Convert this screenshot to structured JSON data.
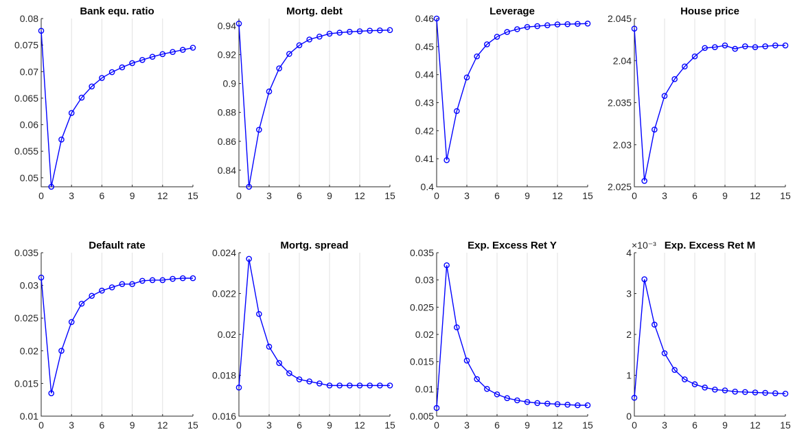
{
  "chart_data": [
    {
      "type": "line",
      "title": "Bank equ. ratio",
      "x": [
        0,
        1,
        2,
        3,
        4,
        5,
        6,
        7,
        8,
        9,
        10,
        11,
        12,
        13,
        14,
        15
      ],
      "series": [
        {
          "values": [
            0.0777,
            0.0483,
            0.0572,
            0.0622,
            0.0651,
            0.0672,
            0.0688,
            0.0699,
            0.0708,
            0.0716,
            0.0722,
            0.0728,
            0.0733,
            0.0737,
            0.0741,
            0.0745
          ]
        }
      ],
      "xlim": [
        0,
        15
      ],
      "ylim": [
        0.0483,
        0.08
      ],
      "xticks": [
        0,
        3,
        6,
        9,
        12,
        15
      ],
      "yticks": [
        0.05,
        0.055,
        0.06,
        0.065,
        0.07,
        0.075,
        0.08
      ],
      "yticklabels": [
        "0.05",
        "0.055",
        "0.06",
        "0.065",
        "0.07",
        "0.075",
        "0.08"
      ],
      "y_exponent": "",
      "grid": "vertical",
      "color": "#0000ff"
    },
    {
      "type": "line",
      "title": "Mortg. debt",
      "x": [
        0,
        1,
        2,
        3,
        4,
        5,
        6,
        7,
        8,
        9,
        10,
        11,
        12,
        13,
        14,
        15
      ],
      "series": [
        {
          "values": [
            0.9415,
            0.8285,
            0.868,
            0.8945,
            0.9105,
            0.9205,
            0.9265,
            0.9305,
            0.9325,
            0.9345,
            0.9352,
            0.9358,
            0.9362,
            0.9366,
            0.9368,
            0.937
          ]
        }
      ],
      "xlim": [
        0,
        15
      ],
      "ylim": [
        0.8285,
        0.945
      ],
      "xticks": [
        0,
        3,
        6,
        9,
        12,
        15
      ],
      "yticks": [
        0.84,
        0.86,
        0.88,
        0.9,
        0.92,
        0.94
      ],
      "yticklabels": [
        "0.84",
        "0.86",
        "0.88",
        "0.9",
        "0.92",
        "0.94"
      ],
      "y_exponent": "",
      "grid": "vertical",
      "color": "#0000ff"
    },
    {
      "type": "line",
      "title": "Leverage",
      "x": [
        0,
        1,
        2,
        3,
        4,
        5,
        6,
        7,
        8,
        9,
        10,
        11,
        12,
        13,
        14,
        15
      ],
      "series": [
        {
          "values": [
            0.46,
            0.4095,
            0.427,
            0.439,
            0.4465,
            0.4508,
            0.4535,
            0.4552,
            0.4562,
            0.457,
            0.4573,
            0.4576,
            0.4579,
            0.458,
            0.4581,
            0.4582
          ]
        }
      ],
      "xlim": [
        0,
        15
      ],
      "ylim": [
        0.4,
        0.46
      ],
      "xticks": [
        0,
        3,
        6,
        9,
        12,
        15
      ],
      "yticks": [
        0.4,
        0.41,
        0.42,
        0.43,
        0.44,
        0.45,
        0.46
      ],
      "yticklabels": [
        "0.4",
        "0.41",
        "0.42",
        "0.43",
        "0.44",
        "0.45",
        "0.46"
      ],
      "y_exponent": "",
      "grid": "vertical",
      "color": "#0000ff"
    },
    {
      "type": "line",
      "title": "House price",
      "x": [
        0,
        1,
        2,
        3,
        4,
        5,
        6,
        7,
        8,
        9,
        10,
        11,
        12,
        13,
        14,
        15
      ],
      "series": [
        {
          "values": [
            2.0438,
            2.0257,
            2.0318,
            2.0358,
            2.0378,
            2.0393,
            2.0405,
            2.0415,
            2.0416,
            2.0418,
            2.0414,
            2.0417,
            2.0416,
            2.0417,
            2.0418,
            2.0418
          ]
        }
      ],
      "xlim": [
        0,
        15
      ],
      "ylim": [
        2.025,
        2.045
      ],
      "xticks": [
        0,
        3,
        6,
        9,
        12,
        15
      ],
      "yticks": [
        2.025,
        2.03,
        2.035,
        2.04,
        2.045
      ],
      "yticklabels": [
        "2.025",
        "2.03",
        "2.035",
        "2.04",
        "2.045"
      ],
      "y_exponent": "",
      "grid": "vertical",
      "color": "#0000ff"
    },
    {
      "type": "line",
      "title": "Default rate",
      "x": [
        0,
        1,
        2,
        3,
        4,
        5,
        6,
        7,
        8,
        9,
        10,
        11,
        12,
        13,
        14,
        15
      ],
      "series": [
        {
          "values": [
            0.0312,
            0.0135,
            0.02,
            0.0244,
            0.0272,
            0.0284,
            0.0292,
            0.0297,
            0.0302,
            0.0302,
            0.0307,
            0.0308,
            0.0308,
            0.031,
            0.0311,
            0.0311
          ]
        }
      ],
      "xlim": [
        0,
        15
      ],
      "ylim": [
        0.01,
        0.035
      ],
      "xticks": [
        0,
        3,
        6,
        9,
        12,
        15
      ],
      "yticks": [
        0.01,
        0.015,
        0.02,
        0.025,
        0.03,
        0.035
      ],
      "yticklabels": [
        "0.01",
        "0.015",
        "0.02",
        "0.025",
        "0.03",
        "0.035"
      ],
      "y_exponent": "",
      "grid": "vertical",
      "color": "#0000ff"
    },
    {
      "type": "line",
      "title": "Mortg. spread",
      "x": [
        0,
        1,
        2,
        3,
        4,
        5,
        6,
        7,
        8,
        9,
        10,
        11,
        12,
        13,
        14,
        15
      ],
      "series": [
        {
          "values": [
            0.0174,
            0.0237,
            0.021,
            0.0194,
            0.0186,
            0.0181,
            0.0178,
            0.0177,
            0.0176,
            0.0175,
            0.0175,
            0.0175,
            0.0175,
            0.0175,
            0.0175,
            0.0175
          ]
        }
      ],
      "xlim": [
        0,
        15
      ],
      "ylim": [
        0.016,
        0.024
      ],
      "xticks": [
        0,
        3,
        6,
        9,
        12,
        15
      ],
      "yticks": [
        0.016,
        0.018,
        0.02,
        0.022,
        0.024
      ],
      "yticklabels": [
        "0.016",
        "0.018",
        "0.02",
        "0.022",
        "0.024"
      ],
      "y_exponent": "",
      "grid": "vertical",
      "color": "#0000ff"
    },
    {
      "type": "line",
      "title": "Exp. Excess Ret Y",
      "x": [
        0,
        1,
        2,
        3,
        4,
        5,
        6,
        7,
        8,
        9,
        10,
        11,
        12,
        13,
        14,
        15
      ],
      "series": [
        {
          "values": [
            0.0065,
            0.0327,
            0.0213,
            0.0152,
            0.0118,
            0.01,
            0.009,
            0.0083,
            0.0079,
            0.0076,
            0.0074,
            0.0073,
            0.0072,
            0.0071,
            0.007,
            0.007
          ]
        }
      ],
      "xlim": [
        0,
        15
      ],
      "ylim": [
        0.005,
        0.035
      ],
      "xticks": [
        0,
        3,
        6,
        9,
        12,
        15
      ],
      "yticks": [
        0.005,
        0.01,
        0.015,
        0.02,
        0.025,
        0.03,
        0.035
      ],
      "yticklabels": [
        "0.005",
        "0.01",
        "0.015",
        "0.02",
        "0.025",
        "0.03",
        "0.035"
      ],
      "y_exponent": "",
      "grid": "vertical",
      "color": "#0000ff"
    },
    {
      "type": "line",
      "title": "Exp. Excess Ret M",
      "x": [
        0,
        1,
        2,
        3,
        4,
        5,
        6,
        7,
        8,
        9,
        10,
        11,
        12,
        13,
        14,
        15
      ],
      "series": [
        {
          "values": [
            0.00045,
            0.00335,
            0.00224,
            0.00154,
            0.00113,
            0.0009,
            0.00078,
            0.0007,
            0.00065,
            0.00063,
            0.0006,
            0.00059,
            0.00058,
            0.00057,
            0.00056,
            0.00055
          ]
        }
      ],
      "xlim": [
        0,
        15
      ],
      "ylim": [
        0,
        0.004
      ],
      "xticks": [
        0,
        3,
        6,
        9,
        12,
        15
      ],
      "yticks": [
        0,
        0.001,
        0.002,
        0.003,
        0.004
      ],
      "yticklabels": [
        "0",
        "1",
        "2",
        "3",
        "4"
      ],
      "y_exponent": "×10⁻³",
      "grid": "vertical",
      "color": "#0000ff"
    }
  ]
}
